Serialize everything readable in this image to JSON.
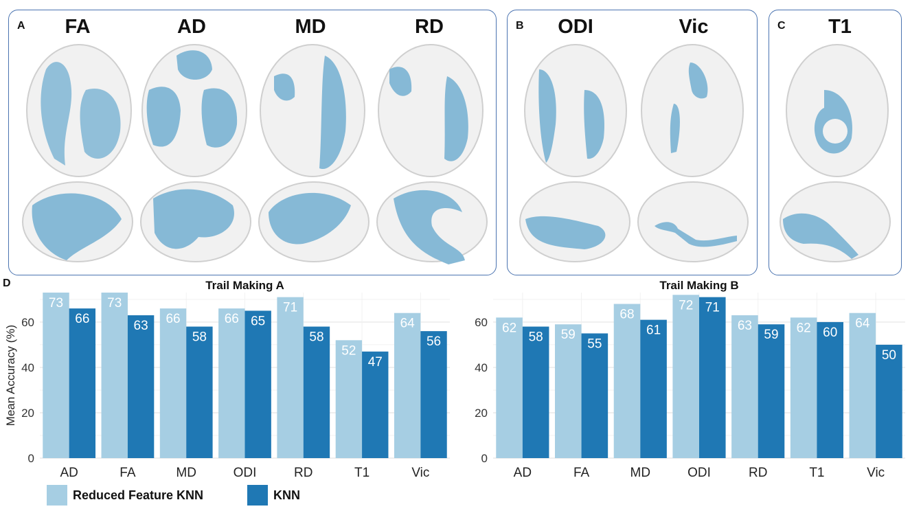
{
  "panels": {
    "a": {
      "label": "A",
      "metrics": [
        "FA",
        "AD",
        "MD",
        "RD"
      ]
    },
    "b": {
      "label": "B",
      "metrics": [
        "ODI",
        "Vic"
      ]
    },
    "c": {
      "label": "C",
      "metrics": [
        "T1"
      ]
    },
    "d": {
      "label": "D"
    }
  },
  "colors": {
    "reduced": "#a6cee3",
    "knn": "#1f78b4",
    "frame": "#4a73b0",
    "brain": "#e8e8e8",
    "tract": "#86b9d6"
  },
  "legend": {
    "reduced": "Reduced Feature KNN",
    "knn": "KNN"
  },
  "chart_data": [
    {
      "type": "bar",
      "title": "Trail Making A",
      "ylabel": "Mean Accuracy (%)",
      "xlabel": "",
      "ylim": [
        0,
        73
      ],
      "yticks": [
        0,
        20,
        40,
        60
      ],
      "categories": [
        "AD",
        "FA",
        "MD",
        "ODI",
        "RD",
        "T1",
        "Vic"
      ],
      "series": [
        {
          "name": "Reduced Feature KNN",
          "values": [
            73,
            73,
            66,
            66,
            71,
            52,
            64
          ]
        },
        {
          "name": "KNN",
          "values": [
            66,
            63,
            58,
            65,
            58,
            47,
            56
          ]
        }
      ]
    },
    {
      "type": "bar",
      "title": "Trail Making B",
      "ylabel": "",
      "xlabel": "",
      "ylim": [
        0,
        73
      ],
      "yticks": [
        0,
        20,
        40,
        60
      ],
      "categories": [
        "AD",
        "FA",
        "MD",
        "ODI",
        "RD",
        "T1",
        "Vic"
      ],
      "series": [
        {
          "name": "Reduced Feature KNN",
          "values": [
            62,
            59,
            68,
            72,
            63,
            62,
            64
          ]
        },
        {
          "name": "KNN",
          "values": [
            58,
            55,
            61,
            71,
            59,
            60,
            50
          ]
        }
      ]
    }
  ]
}
